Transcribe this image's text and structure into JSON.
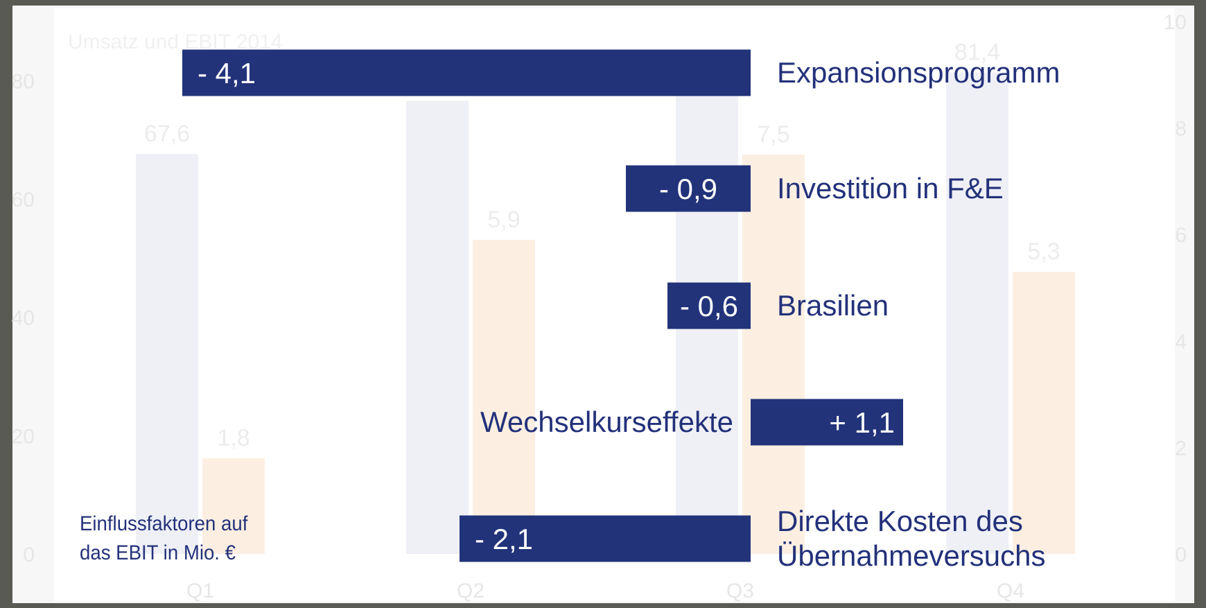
{
  "chart_data": [
    {
      "type": "bar",
      "title": "Umsatz und EBIT 2014",
      "categories": [
        "Q1",
        "Q2",
        "Q3",
        "Q4"
      ],
      "series": [
        {
          "name": "Umsatz",
          "color": "#eef0f6",
          "values": [
            67.6,
            76.6,
            80.3,
            81.4
          ],
          "value_labels": [
            "67,6",
            null,
            "80,3",
            "81,4"
          ]
        },
        {
          "name": "EBIT",
          "color": "#fcefe2",
          "axis": "y2",
          "values": [
            1.8,
            5.9,
            7.5,
            5.3
          ],
          "value_labels": [
            "1,8",
            "5,9",
            "7,5",
            "5,3"
          ]
        }
      ],
      "ylim": [
        0,
        90
      ],
      "yticks": [
        0,
        20,
        40,
        60,
        80
      ],
      "y2lim": [
        0,
        10
      ],
      "y2ticks": [
        0,
        2,
        4,
        6,
        8,
        10
      ]
    },
    {
      "type": "diverging-bar",
      "categories": [
        "Expansionsprogramm",
        "Investition in F&E",
        "Brasilien",
        "Wechselkurseffekte",
        "Direkte Kosten des\nÜbernahmeversuchs"
      ],
      "values": [
        -4.1,
        -0.9,
        -0.6,
        1.1,
        -2.1
      ],
      "value_labels": [
        "- 4,1",
        "- 0,9",
        "- 0,6",
        "+ 1,1",
        "- 2,1"
      ],
      "color": "#22337a",
      "annotation": "Einflussfaktoren auf\ndas EBIT in Mio. €"
    }
  ]
}
